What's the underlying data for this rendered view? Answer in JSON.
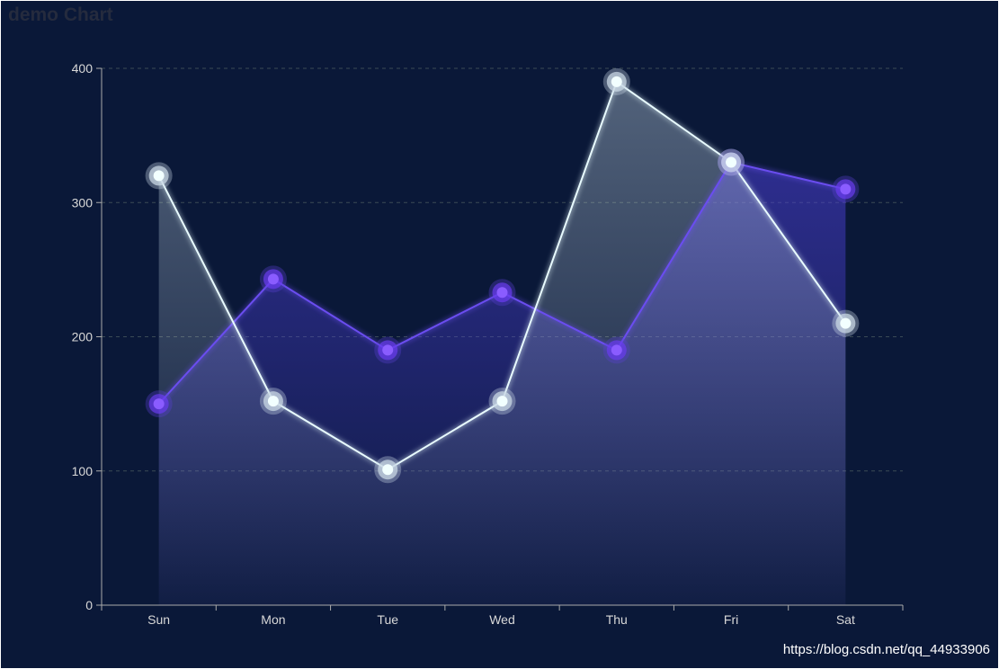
{
  "title": "demo Chart",
  "watermark": "https://blog.csdn.net/qq_44933906",
  "chart_data": {
    "type": "area",
    "title": "demo Chart",
    "categories": [
      "Sun",
      "Mon",
      "Tue",
      "Wed",
      "Thu",
      "Fri",
      "Sat"
    ],
    "series": [
      {
        "values": [
          150,
          243,
          190,
          233,
          190,
          330,
          310
        ],
        "color": "#6a3cf0"
      },
      {
        "values": [
          320,
          152,
          101,
          152,
          390,
          330,
          210
        ],
        "color": "#e6fbff"
      }
    ],
    "yticks": [
      0,
      100,
      200,
      300,
      400
    ],
    "ylim": [
      0,
      400
    ],
    "grid": true,
    "colors": {
      "background": "#0a1838",
      "axis": "#aaaaaa",
      "grid": "#3a4a55"
    }
  }
}
